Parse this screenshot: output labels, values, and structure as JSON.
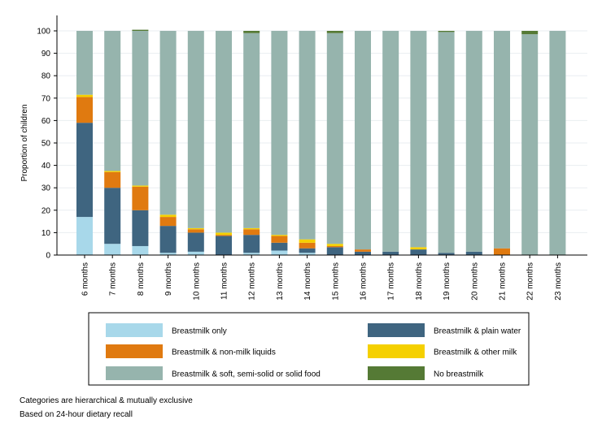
{
  "chart_data": {
    "type": "bar",
    "stacked": true,
    "ylabel": "Proportion of children",
    "xlabel": "",
    "ylim": [
      0,
      100
    ],
    "yticks": [
      0,
      10,
      20,
      30,
      40,
      50,
      60,
      70,
      80,
      90,
      100
    ],
    "grid": true,
    "legend_position": "bottom",
    "categories": [
      "6 months",
      "7 months",
      "8 months",
      "9 months",
      "10 months",
      "11 months",
      "12 months",
      "13 months",
      "14 months",
      "15 months",
      "16 months",
      "17 months",
      "18 months",
      "19 months",
      "20 months",
      "21 months",
      "22 months",
      "23 months"
    ],
    "series": [
      {
        "name": "Breastmilk only",
        "color": "#a8d8ea",
        "values": [
          17,
          5,
          4,
          1,
          1.5,
          0,
          1,
          2,
          1,
          0,
          0,
          0,
          0,
          0,
          0,
          0,
          0,
          0
        ]
      },
      {
        "name": "Breastmilk & plain water",
        "color": "#3f6580",
        "values": [
          42,
          25,
          16,
          12,
          8.5,
          8.5,
          8,
          3.5,
          2,
          3.5,
          1.5,
          1.5,
          2.5,
          1,
          1.5,
          0,
          0,
          0
        ]
      },
      {
        "name": "Breastmilk & non-milk liquids",
        "color": "#e07a10",
        "values": [
          11.5,
          7,
          10.5,
          4,
          1.5,
          0.5,
          2.5,
          3,
          2.5,
          0.5,
          1,
          0,
          0,
          0,
          0,
          3,
          0,
          0
        ]
      },
      {
        "name": "Breastmilk & other milk",
        "color": "#f5d000",
        "values": [
          1,
          0.5,
          0.5,
          1,
          0.5,
          1,
          0.5,
          0.5,
          1.5,
          1,
          0,
          0,
          1,
          0,
          0,
          0,
          0,
          0
        ]
      },
      {
        "name": "Breastmilk & soft, semi-solid or solid food",
        "color": "#96b4ad",
        "values": [
          28.5,
          62.5,
          69,
          82,
          88,
          90,
          87,
          91,
          93,
          94,
          97.5,
          98.5,
          96.5,
          98.5,
          98.5,
          97,
          98.5,
          100
        ]
      },
      {
        "name": "No breastmilk",
        "color": "#557a35",
        "values": [
          0,
          0,
          0.5,
          0,
          0,
          0,
          1,
          0,
          0,
          1,
          0,
          0,
          0,
          0.5,
          0,
          0,
          1.5,
          0
        ]
      }
    ],
    "legend_layout": [
      [
        "Breastmilk only",
        "Breastmilk & plain water"
      ],
      [
        "Breastmilk & non-milk liquids",
        "Breastmilk & other milk"
      ],
      [
        "Breastmilk & soft, semi-solid or solid food",
        "No breastmilk"
      ]
    ]
  },
  "notes": {
    "line1": "Categories are hierarchical & mutually exclusive",
    "line2": "Based on 24-hour dietary recall"
  }
}
